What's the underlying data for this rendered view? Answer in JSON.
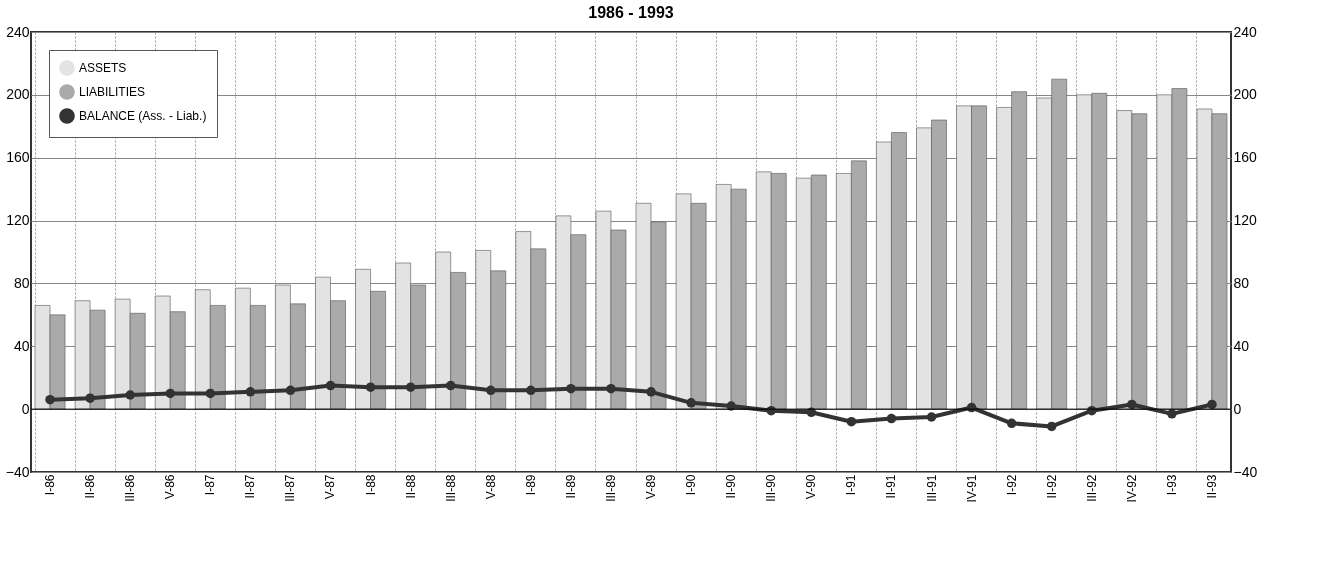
{
  "chart_data": {
    "type": "bar",
    "title": "1986 - 1993",
    "categories": [
      "I-86",
      "II-86",
      "III-86",
      "V-86",
      "I-87",
      "II-87",
      "III-87",
      "V-87",
      "I-88",
      "II-88",
      "III-88",
      "V-88",
      "I-89",
      "II-89",
      "III-89",
      "V-89",
      "I-90",
      "II-90",
      "III-90",
      "V-90",
      "I-91",
      "II-91",
      "III-91",
      "IV-91",
      "I-92",
      "II-92",
      "III-92",
      "IV-92",
      "I-93",
      "II-93"
    ],
    "series": [
      {
        "name": "ASSETS",
        "color": "#e3e3e3",
        "values": [
          66,
          69,
          70,
          72,
          76,
          77,
          79,
          84,
          89,
          93,
          100,
          101,
          113,
          123,
          126,
          131,
          137,
          143,
          151,
          147,
          150,
          170,
          179,
          193,
          192,
          198,
          200,
          190,
          200,
          191
        ]
      },
      {
        "name": "LIABILITIES",
        "color": "#aaaaaa",
        "values": [
          60,
          63,
          61,
          62,
          66,
          66,
          67,
          69,
          75,
          79,
          87,
          88,
          102,
          111,
          114,
          119,
          131,
          140,
          150,
          149,
          158,
          176,
          184,
          193,
          202,
          210,
          201,
          188,
          204,
          188
        ]
      },
      {
        "name": "BALANCE (Ass. - Liab.)",
        "type": "line",
        "color": "#333333",
        "values": [
          6,
          7,
          9,
          10,
          10,
          11,
          12,
          15,
          14,
          14,
          15,
          12,
          12,
          13,
          13,
          11,
          4,
          2,
          -1,
          -2,
          -8,
          -6,
          -5,
          1,
          -9,
          -11,
          -1,
          3,
          -3,
          3
        ]
      }
    ],
    "ylim": [
      -40,
      240
    ],
    "yticks": [
      -40,
      0,
      40,
      80,
      120,
      160,
      200,
      240
    ],
    "y2lim": [
      -40,
      240
    ],
    "y2ticks": [
      -40,
      0,
      40,
      80,
      120,
      160,
      200,
      240
    ],
    "grid": true,
    "legend": "top left",
    "marker": "circle",
    "line_style": "solid"
  }
}
